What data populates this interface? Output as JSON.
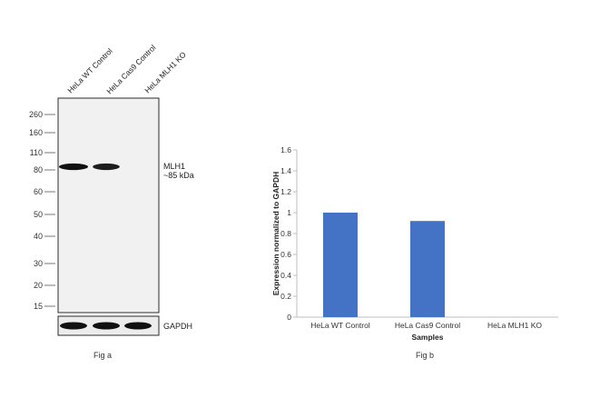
{
  "blot": {
    "lanes": [
      "HeLa WT Control",
      "HeLa Cas9 Control",
      "HeLa MLH1 KO"
    ],
    "markers": [
      "260",
      "160",
      "110",
      "80",
      "60",
      "50",
      "40",
      "30",
      "20",
      "15"
    ],
    "target_label_line1": "MLH1",
    "target_label_line2": "~85 kDa",
    "loading_label": "GAPDH",
    "target_band_intensity": [
      1.0,
      0.92,
      0.0
    ],
    "loading_band_intensity": [
      1.0,
      1.0,
      1.0
    ],
    "caption": "Fig a"
  },
  "chart_data": {
    "type": "bar",
    "categories": [
      "HeLa WT Control",
      "HeLa Cas9 Control",
      "HeLa MLH1 KO"
    ],
    "values": [
      1.0,
      0.92,
      0.0
    ],
    "xlabel": "Samples",
    "ylabel": "Expression normalized to GAPDH",
    "ylim": [
      0,
      1.6
    ],
    "yticks": [
      "0",
      "0.2",
      "0.4",
      "0.6",
      "0.8",
      "1",
      "1.2",
      "1.4",
      "1.6"
    ],
    "bar_color": "#4472c4",
    "grid": false,
    "caption": "Fig b"
  }
}
